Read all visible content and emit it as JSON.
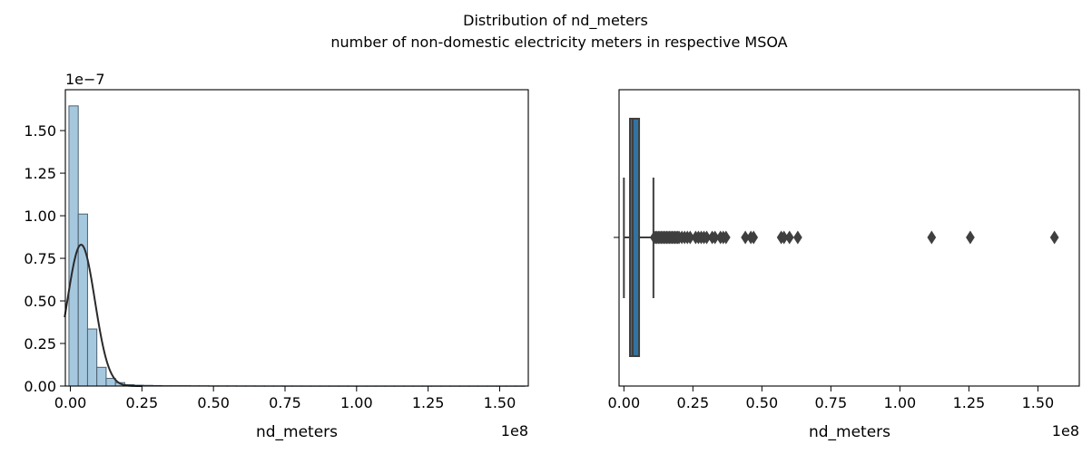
{
  "figure": {
    "title": "Distribution of nd_meters",
    "subtitle": "number of non-domestic electricity meters in respective MSOA"
  },
  "chart_data": [
    {
      "type": "histogram",
      "xlabel": "nd_meters",
      "x_offset_label": "1e8",
      "y_offset_label": "1e−7",
      "x_scale": 100000000.0,
      "y_scale": 1e-07,
      "xlim": [
        -0.0175,
        1.6
      ],
      "ylim": [
        0,
        1.74
      ],
      "x_ticks": [
        0.0,
        0.25,
        0.5,
        0.75,
        1.0,
        1.25,
        1.5
      ],
      "x_tick_labels": [
        "0.00",
        "0.25",
        "0.50",
        "0.75",
        "1.00",
        "1.25",
        "1.50"
      ],
      "y_ticks": [
        0.0,
        0.25,
        0.5,
        0.75,
        1.0,
        1.25,
        1.5
      ],
      "y_tick_labels": [
        "0.00",
        "0.25",
        "0.50",
        "0.75",
        "1.00",
        "1.25",
        "1.50"
      ],
      "bin_start": -0.005,
      "bin_width": 0.0325,
      "densities": [
        1.645,
        1.01,
        0.335,
        0.11,
        0.045,
        0.02,
        0.008,
        0.005,
        0.004,
        0.003,
        0.002,
        0.002,
        0.002,
        0.0015,
        0.0015,
        0.001,
        0.001,
        0.001,
        0.0008,
        0.0008,
        0.0006,
        0.0005,
        0.0005,
        0.0004,
        0.0004,
        0.0003,
        0.0003,
        0.0003,
        0.0003,
        0.0003,
        0.0002,
        0.0002,
        0.0002,
        0.0002,
        0.0002,
        0.0002,
        0.0002,
        0.0002,
        0.0002,
        0.0002,
        0.0002,
        0.0002,
        0.0002,
        0.0002,
        0.0002,
        0.0002,
        0.0002,
        0.0002,
        0.0002
      ],
      "kde": {
        "mean": 0.0376,
        "sd": 0.048,
        "peak": 0.83,
        "x_start": -0.02,
        "x_end": 0.25
      },
      "colors": {
        "bar_fill": "#a6c8df",
        "bar_edge": "#4a6070",
        "kde_line": "#2a2a2a"
      }
    },
    {
      "type": "boxplot",
      "xlabel": "nd_meters",
      "x_offset_label": "1e8",
      "x_scale": 100000000.0,
      "xlim": [
        -0.0175,
        1.65
      ],
      "x_ticks": [
        0.0,
        0.25,
        0.5,
        0.75,
        1.0,
        1.25,
        1.5
      ],
      "x_tick_labels": [
        "0.00",
        "0.25",
        "0.50",
        "0.75",
        "1.00",
        "1.25",
        "1.50"
      ],
      "whisker_low": 0.0,
      "q1": 0.022,
      "median": 0.032,
      "q3": 0.055,
      "whisker_high": 0.107,
      "outliers": [
        0.11,
        0.115,
        0.12,
        0.125,
        0.13,
        0.135,
        0.14,
        0.145,
        0.15,
        0.155,
        0.16,
        0.165,
        0.17,
        0.175,
        0.18,
        0.185,
        0.19,
        0.195,
        0.2,
        0.21,
        0.22,
        0.23,
        0.24,
        0.26,
        0.27,
        0.28,
        0.29,
        0.3,
        0.32,
        0.33,
        0.35,
        0.36,
        0.37,
        0.44,
        0.46,
        0.47,
        0.57,
        0.58,
        0.6,
        0.63,
        1.115,
        1.255,
        1.56
      ],
      "colors": {
        "box_fill": "#3274a1",
        "line": "#3f3f3f",
        "outlier": "#3f3f3f"
      }
    }
  ]
}
